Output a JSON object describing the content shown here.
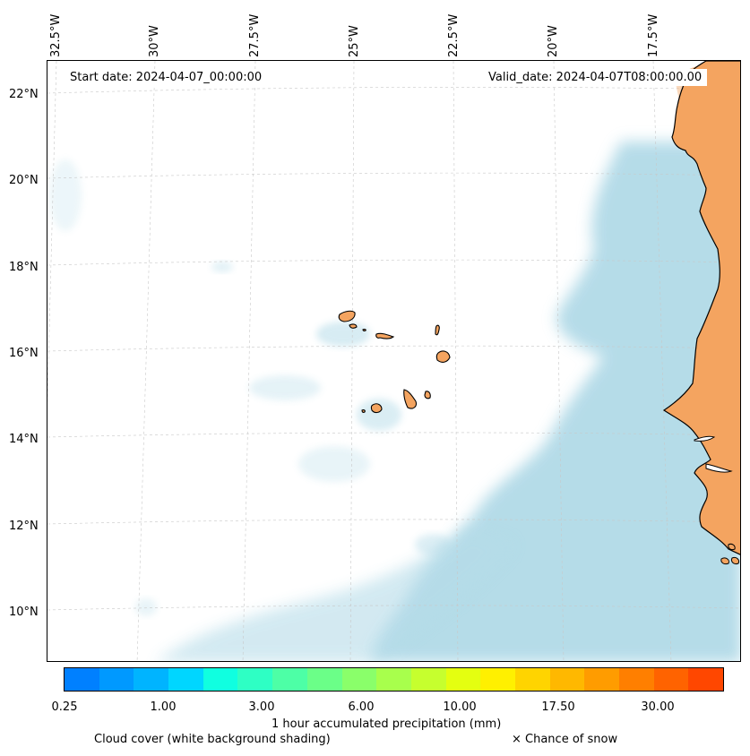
{
  "map": {
    "start_date": "Start date: 2024-04-07_00:00:00",
    "valid_date": "Valid_date: 2024-04-07T08:00:00.00",
    "lon_labels": [
      "32.5°W",
      "30°W",
      "27.5°W",
      "25°W",
      "22.5°W",
      "20°W",
      "17.5°W"
    ],
    "lat_labels": [
      "22°N",
      "20°N",
      "18°N",
      "16°N",
      "14°N",
      "12°N",
      "10°N"
    ],
    "lon_range": [
      -32.7,
      -14.4
    ],
    "lat_range": [
      8.9,
      22.8
    ],
    "features": [
      "Cape Verde islands",
      "West African coast (Mauritania, Senegal, Gambia, Guinea-Bissau)"
    ]
  },
  "colorbar": {
    "colors": [
      "#0080ff",
      "#0099ff",
      "#00b4ff",
      "#00d6ff",
      "#10ffe0",
      "#2effc4",
      "#4dffa6",
      "#6bff88",
      "#8aff6a",
      "#a8ff4c",
      "#c6ff2e",
      "#e4ff10",
      "#fff000",
      "#ffd400",
      "#ffb800",
      "#ff9c00",
      "#ff7f00",
      "#ff6300",
      "#ff4700"
    ],
    "ticks": [
      "0.25",
      "1.00",
      "3.00",
      "6.00",
      "10.00",
      "17.50",
      "30.00"
    ],
    "tick_positions": [
      0,
      3,
      6,
      9,
      12,
      15,
      18
    ],
    "label": "1 hour accumulated precipitation (mm)"
  },
  "legend": {
    "cloud_cover": "Cloud cover (white background shading)",
    "snow": "× Chance of snow"
  },
  "colors": {
    "land": "#f4a460",
    "cloud": "#add8e6",
    "grid": "#c8c8c8"
  }
}
